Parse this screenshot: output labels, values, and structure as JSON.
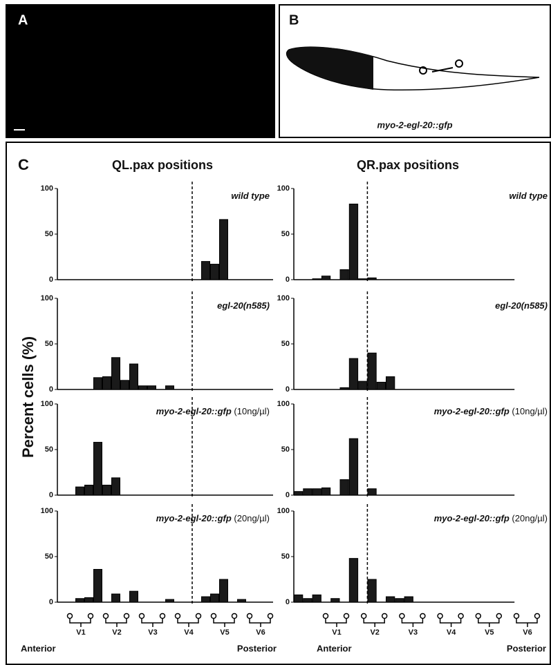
{
  "panel_a": {
    "label": "A"
  },
  "panel_b": {
    "label": "B",
    "caption": "myo-2-egl-20::gfp"
  },
  "panel_c": {
    "label": "C",
    "column_titles": [
      "QL.pax positions",
      "QR.pax positions"
    ],
    "y_label": "Percent cells (%)",
    "x_labels": [
      "V1",
      "V2",
      "V3",
      "V4",
      "V5",
      "V6"
    ],
    "anterior": "Anterior",
    "posterior": "Posterior"
  },
  "chart_data": [
    {
      "type": "bar",
      "title": "wild type",
      "ylim": [
        0,
        100
      ],
      "yticks": [
        0,
        50,
        100
      ],
      "categories": [
        null,
        null,
        null,
        null,
        null,
        null,
        null,
        null,
        null,
        null,
        null,
        null,
        null,
        null,
        null,
        null,
        null,
        null,
        null,
        null,
        null,
        null,
        null,
        null
      ],
      "values": [
        null,
        null,
        null,
        null,
        null,
        null,
        null,
        null,
        null,
        null,
        null,
        null,
        null,
        null,
        null,
        null,
        20,
        17,
        66,
        null,
        null,
        null,
        null,
        null
      ]
    },
    {
      "type": "bar",
      "title": "wild type",
      "ylim": [
        0,
        100
      ],
      "yticks": [
        0,
        50,
        100
      ],
      "categories": [
        null,
        null,
        null,
        null,
        null,
        null,
        null,
        null,
        null,
        null,
        null,
        null,
        null,
        null,
        null,
        null,
        null,
        null,
        null,
        null,
        null,
        null,
        null,
        null
      ],
      "values": [
        null,
        null,
        1,
        4,
        null,
        11,
        83,
        1,
        2,
        null,
        null,
        null,
        null,
        null,
        null,
        null,
        null,
        null,
        null,
        null,
        null,
        null,
        null,
        null
      ]
    },
    {
      "type": "bar",
      "title": "egl-20(n585)",
      "ylim": [
        0,
        100
      ],
      "yticks": [
        0,
        50,
        100
      ],
      "categories": [
        null,
        null,
        null,
        null,
        null,
        null,
        null,
        null,
        null,
        null,
        null,
        null,
        null,
        null,
        null,
        null,
        null,
        null,
        null,
        null,
        null,
        null,
        null,
        null
      ],
      "values": [
        null,
        null,
        null,
        null,
        13,
        14,
        35,
        10,
        28,
        4,
        4,
        null,
        4,
        null,
        null,
        null,
        null,
        null,
        null,
        null,
        null,
        null,
        null,
        null
      ]
    },
    {
      "type": "bar",
      "title": "egl-20(n585)",
      "ylim": [
        0,
        100
      ],
      "yticks": [
        0,
        50,
        100
      ],
      "categories": [
        null,
        null,
        null,
        null,
        null,
        null,
        null,
        null,
        null,
        null,
        null,
        null,
        null,
        null,
        null,
        null,
        null,
        null,
        null,
        null,
        null,
        null,
        null,
        null
      ],
      "values": [
        null,
        null,
        null,
        null,
        null,
        2,
        34,
        9,
        40,
        8,
        14,
        null,
        null,
        null,
        null,
        null,
        null,
        null,
        null,
        null,
        null,
        null,
        null,
        null
      ]
    },
    {
      "type": "bar",
      "title": "myo-2-egl-20::gfp",
      "subtitle": "(10ng/µl)",
      "ylim": [
        0,
        100
      ],
      "yticks": [
        0,
        50,
        100
      ],
      "categories": [
        null,
        null,
        null,
        null,
        null,
        null,
        null,
        null,
        null,
        null,
        null,
        null,
        null,
        null,
        null,
        null,
        null,
        null,
        null,
        null,
        null,
        null,
        null,
        null
      ],
      "values": [
        null,
        null,
        9,
        11,
        58,
        11,
        19,
        null,
        null,
        null,
        null,
        null,
        null,
        null,
        null,
        null,
        null,
        null,
        null,
        null,
        null,
        null,
        null,
        null
      ]
    },
    {
      "type": "bar",
      "title": "myo-2-egl-20::gfp",
      "subtitle": "(10ng/µl)",
      "ylim": [
        0,
        100
      ],
      "yticks": [
        0,
        50,
        100
      ],
      "categories": [
        null,
        null,
        null,
        null,
        null,
        null,
        null,
        null,
        null,
        null,
        null,
        null,
        null,
        null,
        null,
        null,
        null,
        null,
        null,
        null,
        null,
        null,
        null,
        null
      ],
      "values": [
        4,
        7,
        7,
        8,
        null,
        17,
        62,
        null,
        7,
        null,
        null,
        null,
        null,
        null,
        null,
        null,
        null,
        null,
        null,
        null,
        null,
        null,
        null,
        null
      ]
    },
    {
      "type": "bar",
      "title": "myo-2-egl-20::gfp",
      "subtitle": "(20ng/µl)",
      "ylim": [
        0,
        100
      ],
      "yticks": [
        0,
        50,
        100
      ],
      "categories": [
        null,
        null,
        null,
        null,
        null,
        null,
        null,
        null,
        null,
        null,
        null,
        null,
        null,
        null,
        null,
        null,
        null,
        null,
        null,
        null,
        null,
        null,
        null,
        null
      ],
      "values": [
        null,
        null,
        4,
        5,
        36,
        null,
        9,
        null,
        12,
        null,
        null,
        null,
        3,
        null,
        null,
        null,
        6,
        9,
        25,
        null,
        3,
        null,
        null,
        null
      ]
    },
    {
      "type": "bar",
      "title": "myo-2-egl-20::gfp",
      "subtitle": "(20ng/µl)",
      "ylim": [
        0,
        100
      ],
      "yticks": [
        0,
        50,
        100
      ],
      "categories": [
        null,
        null,
        null,
        null,
        null,
        null,
        null,
        null,
        null,
        null,
        null,
        null,
        null,
        null,
        null,
        null,
        null,
        null,
        null,
        null,
        null,
        null,
        null,
        null
      ],
      "values": [
        8,
        4,
        8,
        null,
        4,
        null,
        48,
        null,
        25,
        null,
        6,
        4,
        6,
        null,
        null,
        null,
        null,
        null,
        null,
        null,
        null,
        null,
        null,
        null
      ]
    }
  ]
}
